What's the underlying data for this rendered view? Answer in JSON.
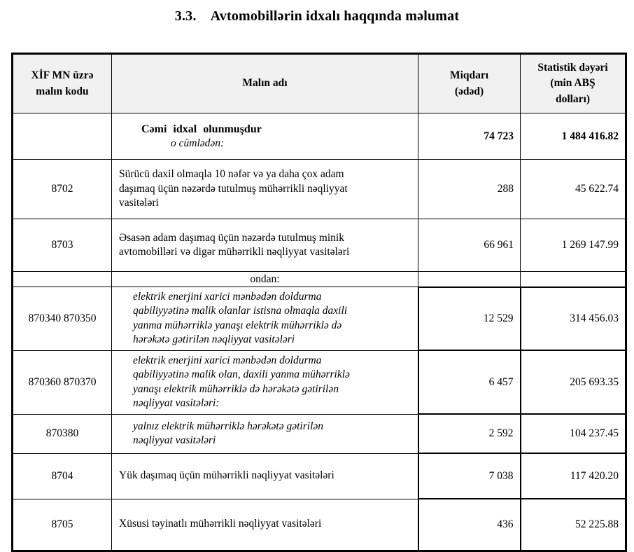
{
  "page": {
    "title_number": "3.3.",
    "title_text": "Avtomobillərin idxalı haqqında məlumat"
  },
  "colors": {
    "header_bg": "#f1f1f1",
    "border": "#000000",
    "text": "#000000"
  },
  "table": {
    "headers": [
      "XİF MN üzrə\nmalın kodu",
      "Malın adı",
      "Miqdarı\n(ədəd)",
      "Statistik dəyəri\n(min ABŞ\ndolları)"
    ],
    "rows": [
      {
        "kind": "total",
        "code": "",
        "name": "Cəmi idxal olunmuşdur",
        "subnote": "o cümlədən:",
        "qty": "74 723",
        "value": "1 484 416.82"
      },
      {
        "kind": "normal",
        "code": "8702",
        "name": "Sürücü daxil olmaqla 10 nəfər və ya daha çox adam daşımaq üçün nəzərdə tutulmuş mühərrikli nəqliyyat vasitələri",
        "qty": "288",
        "value": "45 622.74"
      },
      {
        "kind": "normal",
        "code": "8703",
        "name": "Əsasən adam daşımaq üçün nəzərdə tutulmuş minik avtomobilləri və digər mühərrikli nəqliyyat vasitələri",
        "qty": "66 961",
        "value": "1 269 147.99"
      },
      {
        "kind": "subheader",
        "code": "",
        "name": "ondan:",
        "qty": "",
        "value": ""
      },
      {
        "kind": "sub",
        "code": "870340 870350",
        "name": "elektrik enerjini xarici mənbədən doldurma qabiliyyətinə malik olanlar istisna olmaqla daxili yanma mühərriklə yanaşı elektrik mühərriklə də hərəkətə gətirilən nəqliyyat vasitələri",
        "qty": "12 529",
        "value": "314 456.03"
      },
      {
        "kind": "sub",
        "code": "870360 870370",
        "name": "elektrik enerjini xarici mənbədən doldurma qabiliyyətinə malik olan, daxili yanma mühərriklə yanaşı elektrik mühərriklə də hərəkətə gətirilən nəqliyyat vasitələri:",
        "qty": "6 457",
        "value": "205 693.35"
      },
      {
        "kind": "sub",
        "code": "870380",
        "name": "yalnız elektrik mühərriklə hərəkətə gətirilən nəqliyyat vasitələri",
        "qty": "2 592",
        "value": "104 237.45"
      },
      {
        "kind": "normal",
        "code": "8704",
        "name": "Yük daşımaq üçün mühərrikli nəqliyyat vasitələri",
        "qty": "7 038",
        "value": "117 420.20"
      },
      {
        "kind": "normal",
        "code": "8705",
        "name": "Xüsusi təyinatlı mühərrikli nəqliyyat vasitələri",
        "qty": "436",
        "value": "52 225.88"
      }
    ]
  }
}
